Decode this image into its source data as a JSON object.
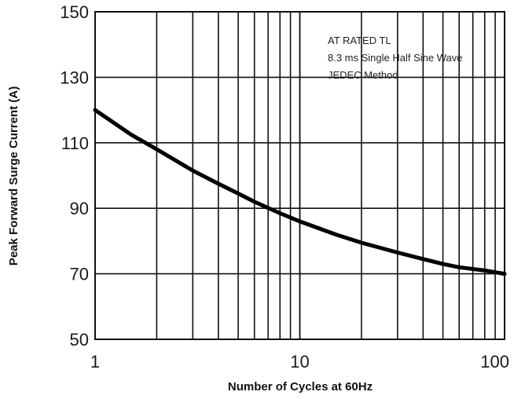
{
  "chart_data": {
    "type": "line",
    "xlabel": "Number of Cycles at 60Hz",
    "ylabel": "Peak Forward Surge Current (A)",
    "x_scale": "log",
    "xlim": [
      1,
      100
    ],
    "ylim": [
      50,
      150
    ],
    "x_ticks": [
      1,
      10,
      100
    ],
    "y_ticks": [
      50,
      70,
      90,
      110,
      130,
      150
    ],
    "grid": true,
    "annotations": [
      "AT RATED TL",
      "8.3 ms Single Half Sine Wave",
      "JEDEC Method"
    ],
    "series": [
      {
        "x": [
          1,
          1.5,
          2,
          3,
          4,
          5,
          6,
          8,
          10,
          15,
          20,
          30,
          40,
          50,
          60,
          80,
          100
        ],
        "y": [
          120,
          112.5,
          108,
          101.5,
          97.5,
          94.5,
          92,
          88.5,
          86,
          82,
          79.5,
          76.5,
          74.5,
          73,
          72,
          71,
          70
        ]
      }
    ]
  }
}
